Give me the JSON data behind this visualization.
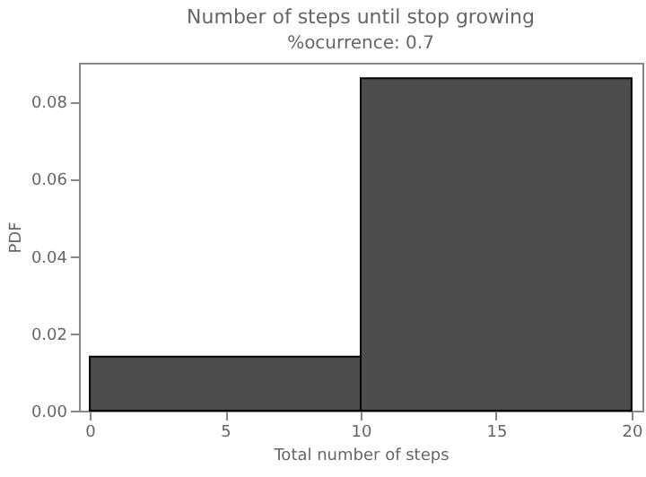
{
  "chart_data": {
    "type": "histogram",
    "title": "Number of steps until stop growing",
    "subtitle": "%ocurrence: 0.7",
    "xlabel": "Total number of steps",
    "ylabel": "PDF",
    "bins": [
      0,
      10,
      20
    ],
    "values": [
      0.014,
      0.086
    ],
    "color": "#4d4d4d",
    "xlim": [
      -0.4,
      20.4
    ],
    "xticks": [
      0,
      5,
      10,
      15,
      20
    ],
    "ylim": [
      0,
      0.09
    ],
    "yticks": [
      {
        "value": 0,
        "label": "0.00"
      },
      {
        "value": 0.02,
        "label": "0.02"
      },
      {
        "value": 0.04,
        "label": "0.04"
      },
      {
        "value": 0.06,
        "label": "0.06"
      },
      {
        "value": 0.08,
        "label": "0.08"
      }
    ],
    "grid": false
  }
}
